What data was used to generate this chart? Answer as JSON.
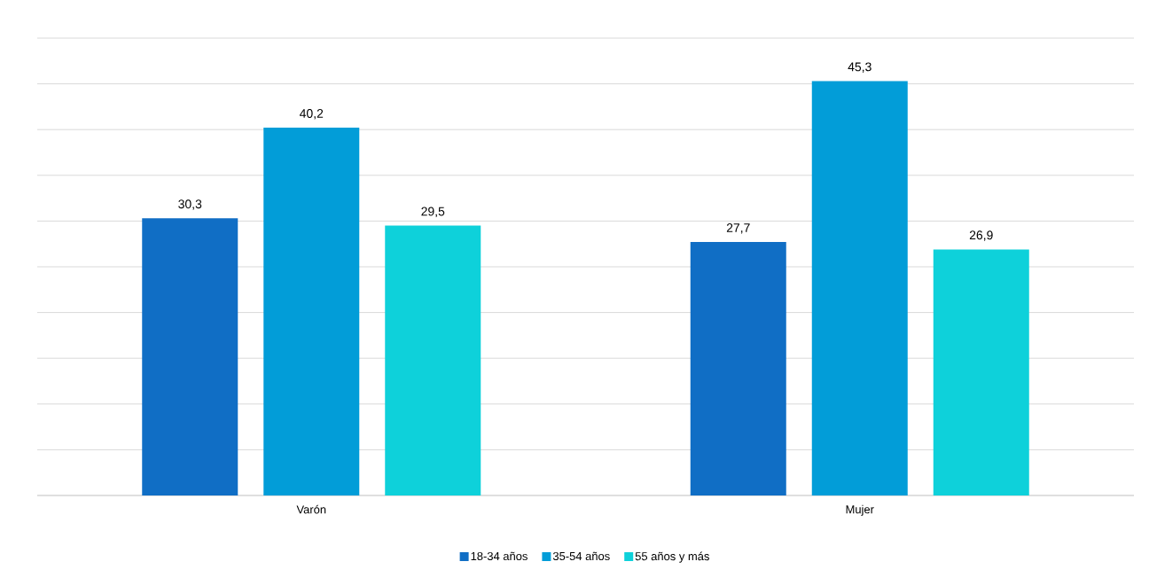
{
  "chart_data": {
    "type": "bar",
    "categories": [
      "Varón",
      "Mujer"
    ],
    "series": [
      {
        "name": "18-34 años",
        "color": "#106ec5",
        "values": [
          30.3,
          27.7
        ],
        "value_labels": [
          "30,3",
          "27,7"
        ]
      },
      {
        "name": "35-54 años",
        "color": "#029dd8",
        "values": [
          40.2,
          45.3
        ],
        "value_labels": [
          "40,2",
          "45,3"
        ]
      },
      {
        "name": "55 años y más",
        "color": "#0ed1da",
        "values": [
          29.5,
          26.9
        ],
        "value_labels": [
          "29,5",
          "26,9"
        ]
      }
    ],
    "ylim": [
      0,
      50
    ],
    "yticks": [
      {
        "value": 0,
        "label": null
      },
      {
        "value": 5,
        "label": null
      },
      {
        "value": 10,
        "label": null
      },
      {
        "value": 15,
        "label": null
      },
      {
        "value": 20,
        "label": null
      },
      {
        "value": 25,
        "label": null
      },
      {
        "value": 30,
        "label": null
      },
      {
        "value": 35,
        "label": null
      },
      {
        "value": 40,
        "label": null
      },
      {
        "value": 45,
        "label": null
      },
      {
        "value": 50,
        "label": null
      }
    ],
    "grid": "y",
    "legend": "bottom"
  }
}
